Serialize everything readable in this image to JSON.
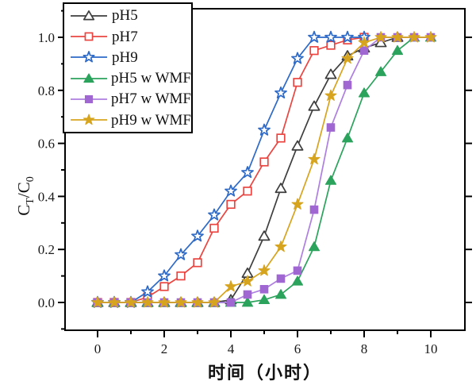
{
  "chart_data": {
    "type": "line",
    "title": "",
    "xlabel": "时间（小时）",
    "ylabel": "CT/C0",
    "ylabel_parts": {
      "base1": "C",
      "sub1": "T",
      "divider": "/",
      "base2": "C",
      "sub2": "0"
    },
    "xlim": [
      -1,
      11
    ],
    "ylim": [
      -0.1,
      1.1
    ],
    "grid": false,
    "legend_position": "top-left",
    "x_major_ticks": [
      0,
      2,
      4,
      6,
      8,
      10
    ],
    "x_minor_ticks": [
      1,
      3,
      5,
      7,
      9
    ],
    "y_major_ticks": [
      0.0,
      0.2,
      0.4,
      0.6,
      0.8,
      1.0
    ],
    "y_minor_ticks": [
      -0.1,
      0.1,
      0.3,
      0.5,
      0.7,
      0.9,
      1.1
    ],
    "x_tick_labels": [
      "0",
      "2",
      "4",
      "6",
      "8",
      "10"
    ],
    "y_tick_labels": [
      "0.0",
      "0.2",
      "0.4",
      "0.6",
      "0.8",
      "1.0"
    ],
    "frame_color": "#000000",
    "series": [
      {
        "name": "pH5",
        "color": "#3e3e3e",
        "marker": "triangle",
        "marker_style": "open",
        "x": [
          0,
          0.5,
          1,
          1.5,
          2,
          2.5,
          3,
          3.5,
          4,
          4.5,
          5,
          5.5,
          6,
          6.5,
          7,
          7.5,
          8,
          8.5,
          9
        ],
        "y": [
          0,
          0,
          0,
          0,
          0,
          0,
          0,
          0,
          0.01,
          0.11,
          0.25,
          0.43,
          0.59,
          0.74,
          0.86,
          0.93,
          0.96,
          0.98,
          1.0
        ]
      },
      {
        "name": "pH7",
        "color": "#ea4540",
        "marker": "square",
        "marker_style": "open",
        "x": [
          0,
          0.5,
          1,
          1.5,
          2,
          2.5,
          3,
          3.5,
          4,
          4.5,
          5,
          5.5,
          6,
          6.5,
          7,
          7.5,
          8
        ],
        "y": [
          0,
          0,
          0,
          0.02,
          0.06,
          0.1,
          0.15,
          0.28,
          0.37,
          0.42,
          0.53,
          0.62,
          0.83,
          0.95,
          0.97,
          0.99,
          1.0
        ]
      },
      {
        "name": "pH9",
        "color": "#2e6ac7",
        "marker": "star",
        "marker_style": "open",
        "x": [
          0,
          0.5,
          1,
          1.5,
          2,
          2.5,
          3,
          3.5,
          4,
          4.5,
          5,
          5.5,
          6,
          6.5,
          7,
          7.5,
          8
        ],
        "y": [
          0,
          0,
          0,
          0.04,
          0.1,
          0.18,
          0.25,
          0.33,
          0.42,
          0.49,
          0.65,
          0.79,
          0.92,
          1.0,
          1.0,
          1.0,
          1.0
        ]
      },
      {
        "name": "pH5 w WMF",
        "color": "#2ba35c",
        "marker": "triangle",
        "marker_style": "filled",
        "x": [
          0,
          0.5,
          1,
          1.5,
          2,
          2.5,
          3,
          3.5,
          4,
          4.5,
          5,
          5.5,
          6,
          6.5,
          7,
          7.5,
          8,
          8.5,
          9,
          9.5,
          10
        ],
        "y": [
          0,
          0,
          0,
          0,
          0,
          0,
          0,
          0,
          0,
          0,
          0.01,
          0.03,
          0.08,
          0.21,
          0.46,
          0.62,
          0.79,
          0.87,
          0.95,
          1.0,
          1.0
        ]
      },
      {
        "name": "pH7 w WMF",
        "color": "#ae7ee0",
        "fill": "#a066d2",
        "marker": "square",
        "marker_style": "filled",
        "x": [
          0,
          0.5,
          1,
          1.5,
          2,
          2.5,
          3,
          3.5,
          4,
          4.5,
          5,
          5.5,
          6,
          6.5,
          7,
          7.5,
          8,
          8.5,
          9,
          9.5,
          10
        ],
        "y": [
          0,
          0,
          0,
          0,
          0,
          0,
          0,
          0,
          0,
          0.03,
          0.05,
          0.09,
          0.12,
          0.35,
          0.66,
          0.82,
          0.95,
          1.0,
          1.0,
          1.0,
          1.0
        ]
      },
      {
        "name": "pH9 w WMF",
        "color": "#d7a41f",
        "marker": "star",
        "marker_style": "filled",
        "x": [
          0,
          0.5,
          1,
          1.5,
          2,
          2.5,
          3,
          3.5,
          4,
          4.5,
          5,
          5.5,
          6,
          6.5,
          7,
          7.5,
          8,
          8.5,
          9,
          9.5,
          10
        ],
        "y": [
          0,
          0,
          0,
          0,
          0,
          0,
          0,
          0,
          0.06,
          0.08,
          0.12,
          0.21,
          0.37,
          0.54,
          0.78,
          0.92,
          0.98,
          1.0,
          1.0,
          1.0,
          1.0
        ]
      }
    ]
  }
}
